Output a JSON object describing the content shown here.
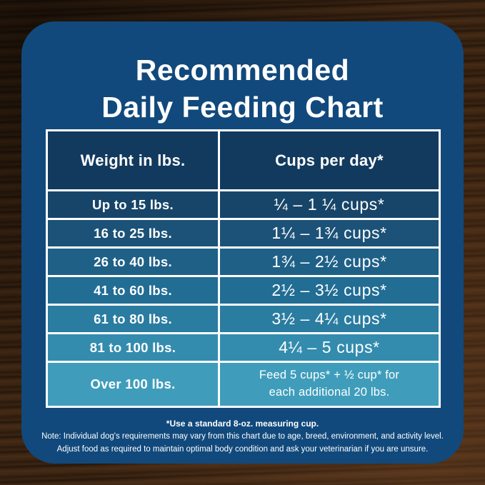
{
  "title": {
    "line1": "Recommended",
    "line2": "Daily Feeding Chart"
  },
  "table": {
    "col_headers": [
      "Weight in lbs.",
      "Cups per day*"
    ],
    "rows": [
      {
        "weight": "Up to 15 lbs.",
        "cups": "¼ – 1 ¼ cups*",
        "bg": "#174569"
      },
      {
        "weight": "16 to 25 lbs.",
        "cups": "1¼ – 1¾  cups*",
        "bg": "#1c5278"
      },
      {
        "weight": "26 to 40 lbs.",
        "cups": "1¾ – 2½ cups*",
        "bg": "#1f6087"
      },
      {
        "weight": "41 to 60 lbs.",
        "cups": "2½ – 3½ cups*",
        "bg": "#216d94"
      },
      {
        "weight": "61 to 80 lbs.",
        "cups": "3½ – 4¼ cups*",
        "bg": "#2a7ca0"
      },
      {
        "weight": "81 to 100 lbs.",
        "cups": "4¼ – 5 cups*",
        "bg": "#338cae"
      },
      {
        "weight": "Over 100 lbs.",
        "cups": "Feed 5 cups* + ½ cup* for\neach additional 20 lbs.",
        "bg": "#3f9dbb"
      }
    ]
  },
  "footnotes": {
    "line1": "*Use a standard 8-oz. measuring cup.",
    "line2": "Note: Individual dog's requirements may vary from this chart due to age, breed, environment, and activity level.",
    "line3": "Adjust food as required to maintain optimal body condition and ask your veterinarian if you are unsure."
  },
  "colors": {
    "card": "#11497c",
    "table_header": "#123a5e",
    "border": "#ffffff",
    "text": "#ffffff"
  },
  "chart_data": {
    "type": "table",
    "title": "Recommended Daily Feeding Chart",
    "columns": [
      "Weight in lbs.",
      "Cups per day*"
    ],
    "rows": [
      [
        "Up to 15 lbs.",
        "¼ – 1 ¼ cups*"
      ],
      [
        "16 to 25 lbs.",
        "1¼ – 1¾ cups*"
      ],
      [
        "26 to 40 lbs.",
        "1¾ – 2½ cups*"
      ],
      [
        "41 to 60 lbs.",
        "2½ – 3½ cups*"
      ],
      [
        "61 to 80 lbs.",
        "3½ – 4¼ cups*"
      ],
      [
        "81 to 100 lbs.",
        "4¼ – 5 cups*"
      ],
      [
        "Over 100 lbs.",
        "Feed 5 cups* + ½ cup* for each additional 20 lbs."
      ]
    ],
    "notes": [
      "*Use a standard 8-oz. measuring cup.",
      "Note: Individual dog's requirements may vary from this chart due to age, breed, environment, and activity level.",
      "Adjust food as required to maintain optimal body condition and ask your veterinarian if you are unsure."
    ]
  }
}
